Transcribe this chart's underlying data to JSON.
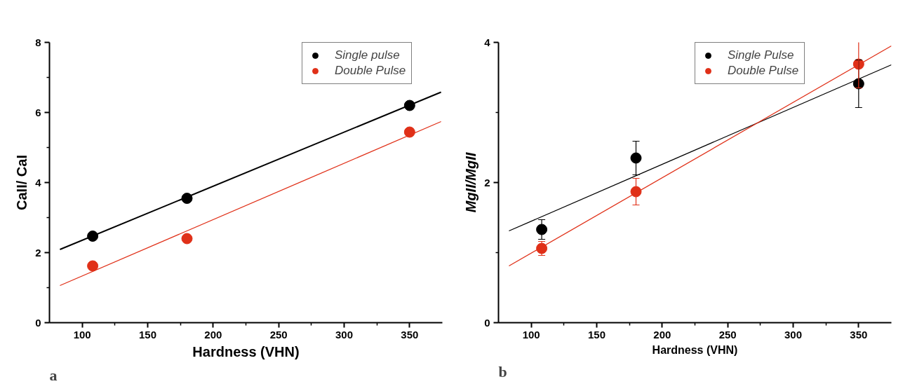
{
  "chart_data": [
    {
      "type": "scatter",
      "xlabel": "Hardness (VHN)",
      "ylabel": "CaII/ CaI",
      "annotations": [
        "a"
      ],
      "xlim": [
        75,
        375
      ],
      "ylim": [
        0,
        8
      ],
      "xticks": [
        100,
        {
          "value": 125,
          "label": null
        },
        150,
        {
          "value": 175,
          "label": null
        },
        200,
        {
          "value": 225,
          "label": null
        },
        250,
        {
          "value": 275,
          "label": null
        },
        300,
        {
          "value": 325,
          "label": null
        },
        350
      ],
      "yticks": [
        0,
        {
          "value": 1,
          "label": null
        },
        2,
        {
          "value": 3,
          "label": null
        },
        4,
        {
          "value": 5,
          "label": null
        },
        6,
        {
          "value": 7,
          "label": null
        },
        8
      ],
      "marker": "circle",
      "legend": "top right",
      "grid": false,
      "series": [
        {
          "name": "Single pulse",
          "color": "#000000",
          "x": [
            108,
            180,
            350
          ],
          "values": [
            2.47,
            3.55,
            6.2
          ]
        },
        {
          "name": "Double Pulse",
          "color": "#e03018",
          "x": [
            108,
            180,
            350
          ],
          "values": [
            1.62,
            2.4,
            5.44
          ]
        },
        {
          "type": "line",
          "marker": "none",
          "color": "#000000",
          "x": [
            83,
            374
          ],
          "values": [
            2.09,
            6.58
          ]
        },
        {
          "type": "line",
          "marker": "none",
          "color": "#e03018",
          "x": [
            83,
            374
          ],
          "values": [
            1.06,
            5.74
          ]
        }
      ]
    },
    {
      "type": "scatter",
      "xlabel": "Hardness (VHN)",
      "ylabel": "MgII/MgII",
      "annotations": [
        "b"
      ],
      "xlim": [
        75,
        375
      ],
      "ylim": [
        0,
        4
      ],
      "xticks": [
        100,
        {
          "value": 125,
          "label": null
        },
        150,
        {
          "value": 175,
          "label": null
        },
        200,
        {
          "value": 225,
          "label": null
        },
        250,
        {
          "value": 275,
          "label": null
        },
        300,
        {
          "value": 325,
          "label": null
        },
        350
      ],
      "yticks": [
        0,
        {
          "value": 1,
          "label": null
        },
        2,
        {
          "value": 3,
          "label": null
        },
        4
      ],
      "marker": "circle",
      "legend": "top right",
      "grid": false,
      "series": [
        {
          "name": "Single Pulse",
          "color": "#000000",
          "x": [
            108,
            180,
            350
          ],
          "values": [
            1.33,
            2.35,
            3.41
          ],
          "errors": [
            0.14,
            0.24,
            0.34
          ]
        },
        {
          "name": "Double Pulse",
          "color": "#e03018",
          "x": [
            108,
            180,
            350
          ],
          "values": [
            1.06,
            1.87,
            3.69
          ],
          "errors": [
            0.1,
            0.19,
            0.34
          ]
        },
        {
          "type": "line",
          "marker": "none",
          "color": "#000000",
          "x": [
            83,
            375
          ],
          "values": [
            1.31,
            3.68
          ]
        },
        {
          "type": "line",
          "marker": "none",
          "color": "#e03018",
          "x": [
            83,
            375
          ],
          "values": [
            0.81,
            3.95
          ]
        }
      ]
    }
  ]
}
